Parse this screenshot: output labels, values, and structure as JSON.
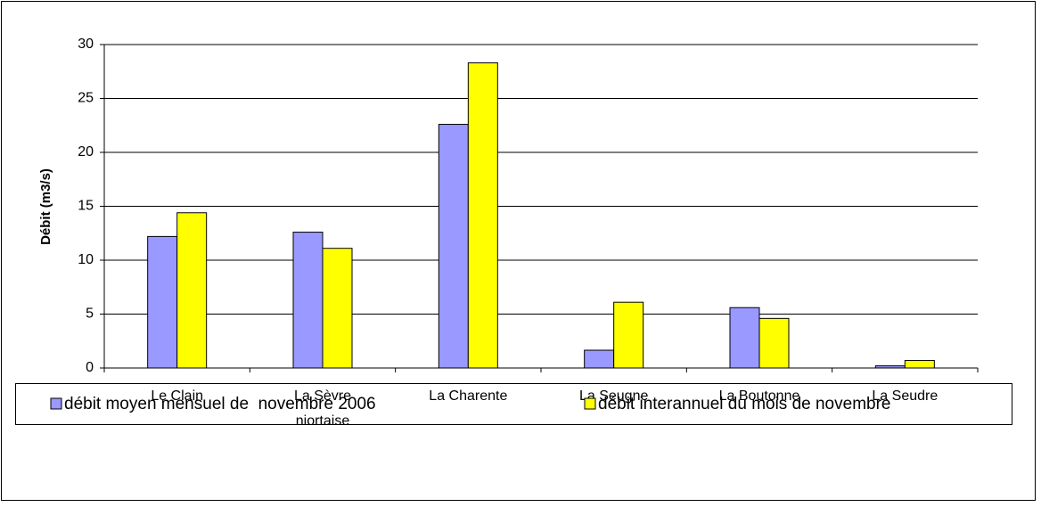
{
  "chart_data": {
    "type": "bar",
    "y_label": "Débit (m3/s)",
    "categories": [
      "Le Clain",
      "La Sèvre niortaise",
      "La Charente",
      "La Seugne",
      "La Boutonne",
      "La Seudre"
    ],
    "series": [
      {
        "name": "débit moyen mensuel de  novembre 2006",
        "color": "#9999ff",
        "values": [
          12.2,
          12.6,
          22.6,
          1.65,
          5.6,
          0.2
        ]
      },
      {
        "name": "débit interannuel du mois de novembre",
        "color": "#ffff00",
        "values": [
          14.4,
          11.1,
          28.3,
          6.1,
          4.6,
          0.7
        ]
      }
    ],
    "ylim": [
      0,
      30
    ],
    "yticks": [
      0,
      5,
      10,
      15,
      20,
      25,
      30
    ],
    "grid": true,
    "legend": "bottom"
  }
}
